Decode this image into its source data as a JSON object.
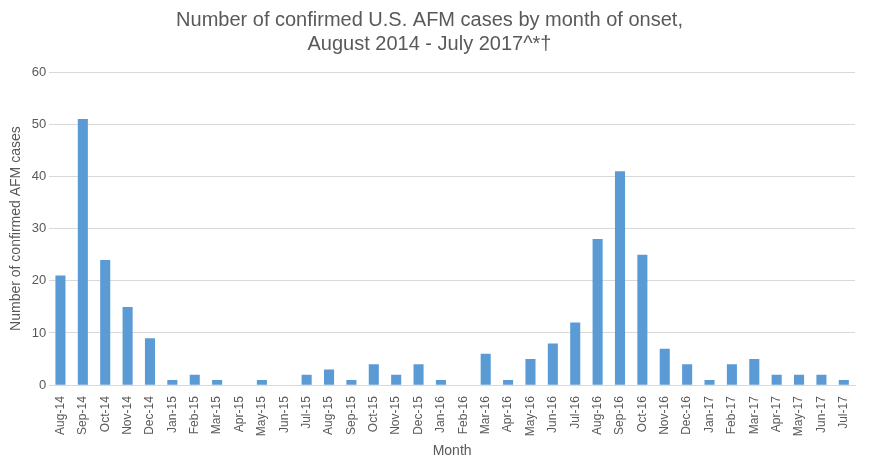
{
  "chart_data": {
    "type": "bar",
    "title": [
      "Number of confirmed U.S. AFM cases by month of onset,",
      "August 2014 - July 2017^*†"
    ],
    "x_label": "Month",
    "y_label": "Number of confirmed AFM cases",
    "categories": [
      "Aug-14",
      "Sep-14",
      "Oct-14",
      "Nov-14",
      "Dec-14",
      "Jan-15",
      "Feb-15",
      "Mar-15",
      "Apr-15",
      "May-15",
      "Jun-15",
      "Jul-15",
      "Aug-15",
      "Sep-15",
      "Oct-15",
      "Nov-15",
      "Dec-15",
      "Jan-16",
      "Feb-16",
      "Mar-16",
      "Apr-16",
      "May-16",
      "Jun-16",
      "Jul-16",
      "Aug-16",
      "Sep-16",
      "Oct-16",
      "Nov-16",
      "Dec-16",
      "Jan-17",
      "Feb-17",
      "Mar-17",
      "Apr-17",
      "May-17",
      "Jun-17",
      "Jul-17"
    ],
    "values": [
      21,
      51,
      24,
      15,
      9,
      1,
      2,
      1,
      0,
      1,
      0,
      2,
      3,
      1,
      4,
      2,
      4,
      1,
      0,
      6,
      1,
      5,
      8,
      12,
      28,
      41,
      25,
      7,
      4,
      1,
      4,
      5,
      2,
      2,
      2,
      1
    ],
    "color": "#5b9bd5",
    "ylim": [
      0,
      60
    ],
    "yticks": [
      0,
      10,
      20,
      30,
      40,
      50,
      60
    ],
    "grid": true
  }
}
